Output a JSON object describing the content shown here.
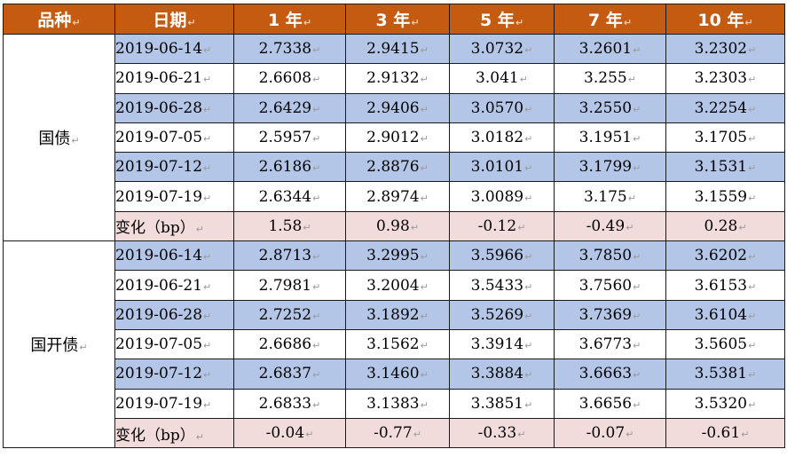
{
  "header": {
    "variety": "品种",
    "date": "日期",
    "y1": "1 年",
    "y3": "3 年",
    "y5": "5 年",
    "y7": "7 年",
    "y10": "10 年"
  },
  "paragraph_mark": "↵",
  "groups": [
    {
      "name": "国债",
      "rows": [
        {
          "date": "2019-06-14",
          "y1": "2.7338",
          "y3": "2.9415",
          "y5": "3.0732",
          "y7": "3.2601",
          "y10": "3.2302"
        },
        {
          "date": "2019-06-21",
          "y1": "2.6608",
          "y3": "2.9132",
          "y5": "3.041",
          "y7": "3.255",
          "y10": "3.2303"
        },
        {
          "date": "2019-06-28",
          "y1": "2.6429",
          "y3": "2.9406",
          "y5": "3.0570",
          "y7": "3.2550",
          "y10": "3.2254"
        },
        {
          "date": "2019-07-05",
          "y1": "2.5957",
          "y3": "2.9012",
          "y5": "3.0182",
          "y7": "3.1951",
          "y10": "3.1705"
        },
        {
          "date": "2019-07-12",
          "y1": "2.6186",
          "y3": "2.8876",
          "y5": "3.0101",
          "y7": "3.1799",
          "y10": "3.1531"
        },
        {
          "date": "2019-07-19",
          "y1": "2.6344",
          "y3": "2.8974",
          "y5": "3.0089",
          "y7": "3.175",
          "y10": "3.1559"
        }
      ],
      "change": {
        "label": "变化（bp）",
        "y1": "1.58",
        "y3": "0.98",
        "y5": "-0.12",
        "y7": "-0.49",
        "y10": "0.28"
      }
    },
    {
      "name": "国开债",
      "rows": [
        {
          "date": "2019-06-14",
          "y1": "2.8713",
          "y3": "3.2995",
          "y5": "3.5966",
          "y7": "3.7850",
          "y10": "3.6202"
        },
        {
          "date": "2019-06-21",
          "y1": "2.7981",
          "y3": "3.2004",
          "y5": "3.5433",
          "y7": "3.7560",
          "y10": "3.6153"
        },
        {
          "date": "2019-06-28",
          "y1": "2.7252",
          "y3": "3.1892",
          "y5": "3.5269",
          "y7": "3.7369",
          "y10": "3.6104"
        },
        {
          "date": "2019-07-05",
          "y1": "2.6686",
          "y3": "3.1562",
          "y5": "3.3914",
          "y7": "3.6773",
          "y10": "3.5605"
        },
        {
          "date": "2019-07-12",
          "y1": "2.6837",
          "y3": "3.1460",
          "y5": "3.3884",
          "y7": "3.6663",
          "y10": "3.5381"
        },
        {
          "date": "2019-07-19",
          "y1": "2.6833",
          "y3": "3.1383",
          "y5": "3.3851",
          "y7": "3.6656",
          "y10": "3.5320"
        }
      ],
      "change": {
        "label": "变化（bp）",
        "y1": "-0.04",
        "y3": "-0.77",
        "y5": "-0.33",
        "y7": "-0.07",
        "y10": "-0.61"
      }
    }
  ]
}
